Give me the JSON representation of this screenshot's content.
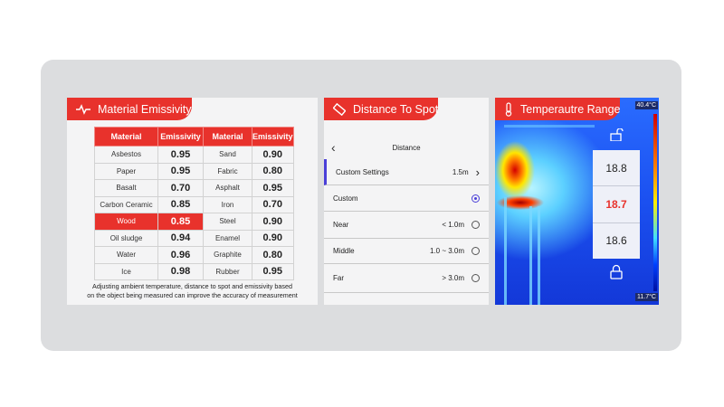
{
  "material": {
    "title": "Material Emissivity",
    "headers": [
      "Material",
      "Emissivity",
      "Material",
      "Emissivity"
    ],
    "rows": [
      [
        "Asbestos",
        "0.95",
        "Sand",
        "0.90"
      ],
      [
        "Paper",
        "0.95",
        "Fabric",
        "0.80"
      ],
      [
        "Basalt",
        "0.70",
        "Asphalt",
        "0.95"
      ],
      [
        "Carbon Ceramic",
        "0.85",
        "Iron",
        "0.70"
      ],
      [
        "Wood",
        "0.85",
        "Steel",
        "0.90"
      ],
      [
        "Oil sludge",
        "0.94",
        "Enamel",
        "0.90"
      ],
      [
        "Water",
        "0.96",
        "Graphite",
        "0.80"
      ],
      [
        "Ice",
        "0.98",
        "Rubber",
        "0.95"
      ]
    ],
    "note_line1": "Adjusting ambient temperature, distance to spot and emissivity based",
    "note_line2": "on the object being measured can improve the accuracy of measurement"
  },
  "distance": {
    "title": "Distance To Spot",
    "screen_title": "Distance",
    "custom_settings": {
      "label": "Custom Settings",
      "value": "1.5m"
    },
    "options": [
      {
        "label": "Custom",
        "value": "",
        "selected": true
      },
      {
        "label": "Near",
        "value": "< 1.0m",
        "selected": false
      },
      {
        "label": "Middle",
        "value": "1.0 ~ 3.0m",
        "selected": false
      },
      {
        "label": "Far",
        "value": "> 3.0m",
        "selected": false
      }
    ]
  },
  "temperature": {
    "title": "Temperautre Range",
    "max": "40.4°C",
    "min": "11.7°C",
    "values": [
      "18.8",
      "18.7",
      "18.6"
    ]
  },
  "colors": {
    "accent": "#e8322c",
    "selected": "#4a3fd8"
  }
}
